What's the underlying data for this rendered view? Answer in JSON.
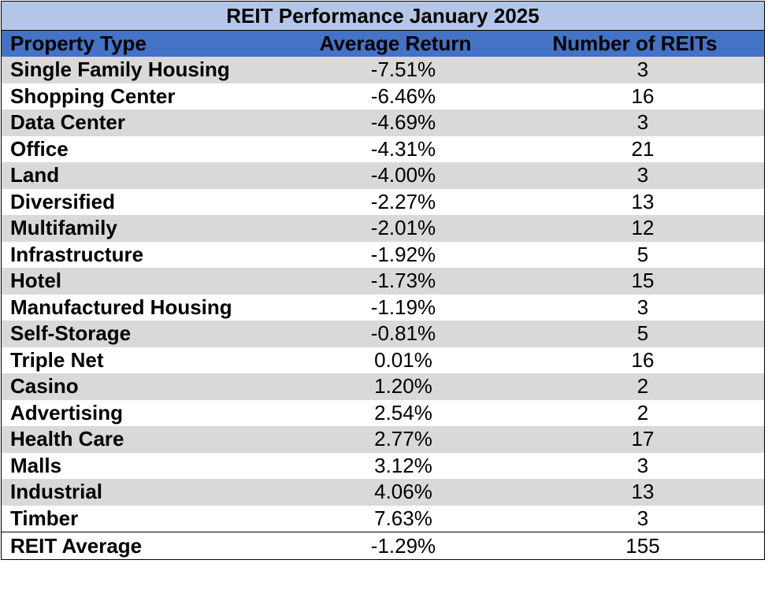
{
  "chart_data": {
    "type": "table",
    "title": "REIT Performance January 2025",
    "columns": [
      "Property Type",
      "Average Return",
      "Number of REITs"
    ],
    "rows": [
      [
        "Single Family Housing",
        "-7.51%",
        "3"
      ],
      [
        "Shopping Center",
        "-6.46%",
        "16"
      ],
      [
        "Data Center",
        "-4.69%",
        "3"
      ],
      [
        "Office",
        "-4.31%",
        "21"
      ],
      [
        "Land",
        "-4.00%",
        "3"
      ],
      [
        "Diversified",
        "-2.27%",
        "13"
      ],
      [
        "Multifamily",
        "-2.01%",
        "12"
      ],
      [
        "Infrastructure",
        "-1.92%",
        "5"
      ],
      [
        "Hotel",
        "-1.73%",
        "15"
      ],
      [
        "Manufactured Housing",
        "-1.19%",
        "3"
      ],
      [
        "Self-Storage",
        "-0.81%",
        "5"
      ],
      [
        "Triple Net",
        "0.01%",
        "16"
      ],
      [
        "Casino",
        "1.20%",
        "2"
      ],
      [
        "Advertising",
        "2.54%",
        "2"
      ],
      [
        "Health Care",
        "2.77%",
        "17"
      ],
      [
        "Malls",
        "3.12%",
        "3"
      ],
      [
        "Industrial",
        "4.06%",
        "13"
      ],
      [
        "Timber",
        "7.63%",
        "3"
      ]
    ],
    "total": [
      "REIT Average",
      "-1.29%",
      "155"
    ]
  },
  "colors": {
    "title_bg": "#b4c6e7",
    "header_bg": "#4472c4",
    "shade_row": "#d9d9d9"
  }
}
